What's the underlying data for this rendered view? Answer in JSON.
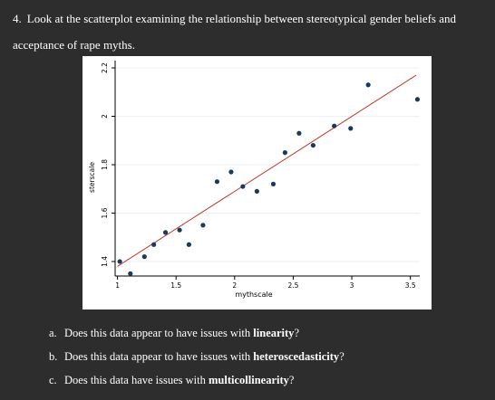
{
  "question": {
    "number": "4.",
    "text": "Look at the scatterplot examining the relationship between stereotypical gender beliefs and acceptance of rape myths."
  },
  "chart_data": {
    "type": "scatter",
    "xlabel": "mythscale",
    "ylabel": "sterscale",
    "xlim": [
      0.98,
      3.58
    ],
    "ylim": [
      1.34,
      2.23
    ],
    "xticks": [
      1,
      1.5,
      2,
      2.5,
      3,
      3.5
    ],
    "xtick_labels": [
      "1",
      "1.5",
      "2",
      "2.5",
      "3",
      "3.5"
    ],
    "yticks": [
      1.4,
      1.6,
      1.8,
      2,
      2.2
    ],
    "ytick_labels": [
      "1.4",
      "1.6",
      "1.8",
      "2",
      "2.2"
    ],
    "grid": true,
    "points_color": "#1a3a5c",
    "fit_line_color": "#c0392b",
    "points": [
      {
        "x": 1.02,
        "y": 1.4
      },
      {
        "x": 1.11,
        "y": 1.35
      },
      {
        "x": 1.23,
        "y": 1.42
      },
      {
        "x": 1.31,
        "y": 1.47
      },
      {
        "x": 1.41,
        "y": 1.52
      },
      {
        "x": 1.53,
        "y": 1.53
      },
      {
        "x": 1.61,
        "y": 1.47
      },
      {
        "x": 1.73,
        "y": 1.55
      },
      {
        "x": 1.85,
        "y": 1.73
      },
      {
        "x": 1.97,
        "y": 1.77
      },
      {
        "x": 2.07,
        "y": 1.71
      },
      {
        "x": 2.19,
        "y": 1.69
      },
      {
        "x": 2.33,
        "y": 1.72
      },
      {
        "x": 2.43,
        "y": 1.85
      },
      {
        "x": 2.55,
        "y": 1.93
      },
      {
        "x": 2.67,
        "y": 1.88
      },
      {
        "x": 2.85,
        "y": 1.96
      },
      {
        "x": 2.99,
        "y": 1.95
      },
      {
        "x": 3.14,
        "y": 2.13
      },
      {
        "x": 3.56,
        "y": 2.07
      }
    ],
    "fit_line": {
      "x": [
        1.0,
        3.55
      ],
      "y": [
        1.38,
        2.17
      ]
    }
  },
  "subquestions": [
    {
      "letter": "a.",
      "prefix": "Does this data appear to have issues with ",
      "bold": "linearity",
      "suffix": "?"
    },
    {
      "letter": "b.",
      "prefix": "Does this data appear to have issues with ",
      "bold": "heteroscedasticity",
      "suffix": "?"
    },
    {
      "letter": "c.",
      "prefix": "Does this data have issues with ",
      "bold": "multicollinearity",
      "suffix": "?"
    }
  ]
}
